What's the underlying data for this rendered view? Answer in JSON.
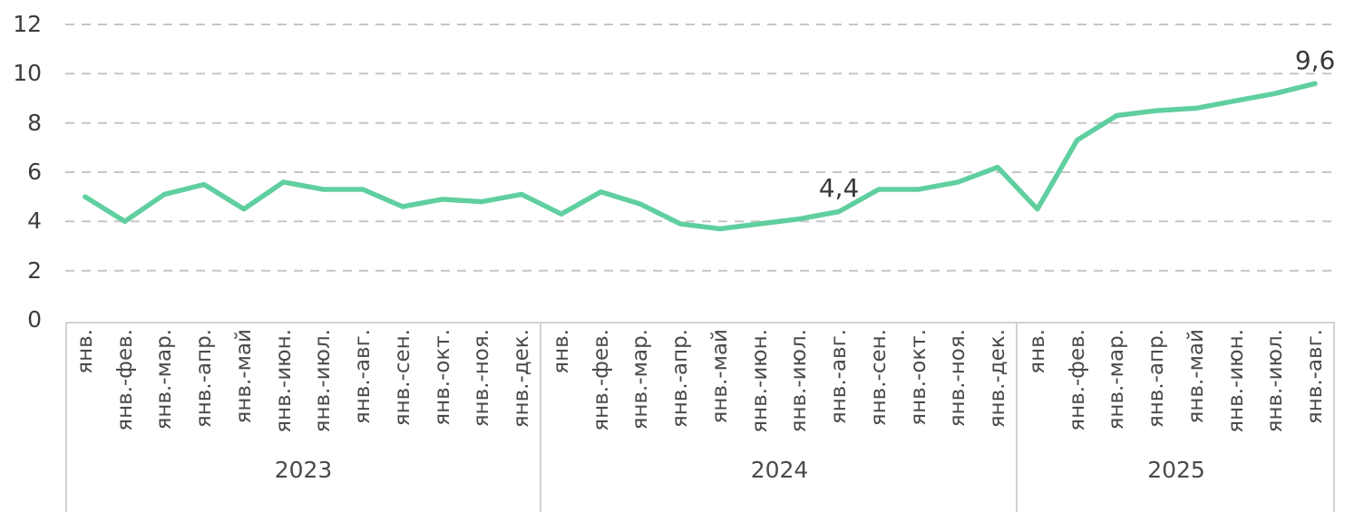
{
  "chart_data": {
    "type": "line",
    "title": "",
    "xlabel": "",
    "ylabel": "",
    "ylim": [
      0,
      12
    ],
    "yticks": [
      0,
      2,
      4,
      6,
      8,
      10,
      12
    ],
    "grid": "horizontal-dashed",
    "legend": "none",
    "line_color": "#60cfa0",
    "gridline_color": "#c6c6c6",
    "axis_box_color": "#d2d2d2",
    "groups": [
      {
        "year": "2023",
        "months": [
          "янв.",
          "янв.-фев.",
          "янв.-мар.",
          "янв.-апр.",
          "янв.-май",
          "янв.-июн.",
          "янв.-июл.",
          "янв.-авг.",
          "янв.-сен.",
          "янв.-окт.",
          "янв.-ноя.",
          "янв.-дек."
        ],
        "values": [
          5.0,
          4.0,
          5.1,
          5.5,
          4.5,
          5.6,
          5.3,
          5.3,
          4.6,
          4.9,
          4.8,
          5.1
        ]
      },
      {
        "year": "2024",
        "months": [
          "янв.",
          "янв.-фев.",
          "янв.-мар.",
          "янв.-апр.",
          "янв.-май",
          "янв.-июн.",
          "янв.-июл.",
          "янв.-авг.",
          "янв.-сен.",
          "янв.-окт.",
          "янв.-ноя.",
          "янв.-дек."
        ],
        "values": [
          4.3,
          5.2,
          4.7,
          3.9,
          3.7,
          3.9,
          4.1,
          4.4,
          5.3,
          5.3,
          5.6,
          6.2
        ]
      },
      {
        "year": "2025",
        "months": [
          "янв.",
          "янв.-фев.",
          "янв.-мар.",
          "янв.-апр.",
          "янв.-май",
          "янв.-июн.",
          "янв.-июл.",
          "янв.-авг."
        ],
        "values": [
          4.5,
          7.3,
          8.3,
          8.5,
          8.6,
          8.9,
          9.2,
          9.6
        ]
      }
    ],
    "point_labels": [
      {
        "group": "2024",
        "month": "янв.-авг.",
        "text": "4,4",
        "value": 4.4
      },
      {
        "group": "2025",
        "month": "янв.-авг.",
        "text": "9,6",
        "value": 9.6
      }
    ]
  }
}
